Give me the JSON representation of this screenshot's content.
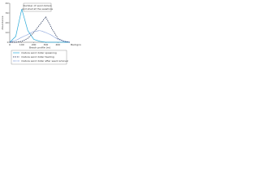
{
  "chart_data": {
    "type": "line",
    "annotation": [
      "Number of sand dollars",
      "and shell at the seashore"
    ],
    "x_label": "Beach profile (m)",
    "y_label": "Abundance",
    "right_label": "Background",
    "x": [
      0,
      50,
      100,
      150,
      200,
      250,
      300,
      350,
      400,
      450,
      500
    ],
    "series": [
      {
        "name": "mature sand dollar spawning",
        "color": "#29a9d8",
        "dash": "",
        "values": [
          0,
          6,
          34,
          12,
          3,
          1,
          0,
          0,
          0,
          0,
          0
        ]
      },
      {
        "name": "mature sand dollar feeding",
        "color": "#1a2a50",
        "dash": "1.5,1",
        "values": [
          0,
          0,
          1,
          4,
          10,
          18,
          26,
          14,
          4,
          1,
          0
        ]
      },
      {
        "name": "mature sand dollar after seed removal",
        "color": "#3a66c4",
        "dash": "0.6,0.6",
        "values": [
          0,
          2,
          5,
          8,
          11,
          12,
          10,
          7,
          3,
          1,
          0
        ]
      }
    ],
    "xlim": [
      0,
      500
    ],
    "xticks": [
      0,
      100,
      200,
      300,
      400
    ],
    "ylim": [
      0,
      40
    ],
    "yticks": [
      0,
      10,
      20,
      30,
      40
    ]
  }
}
